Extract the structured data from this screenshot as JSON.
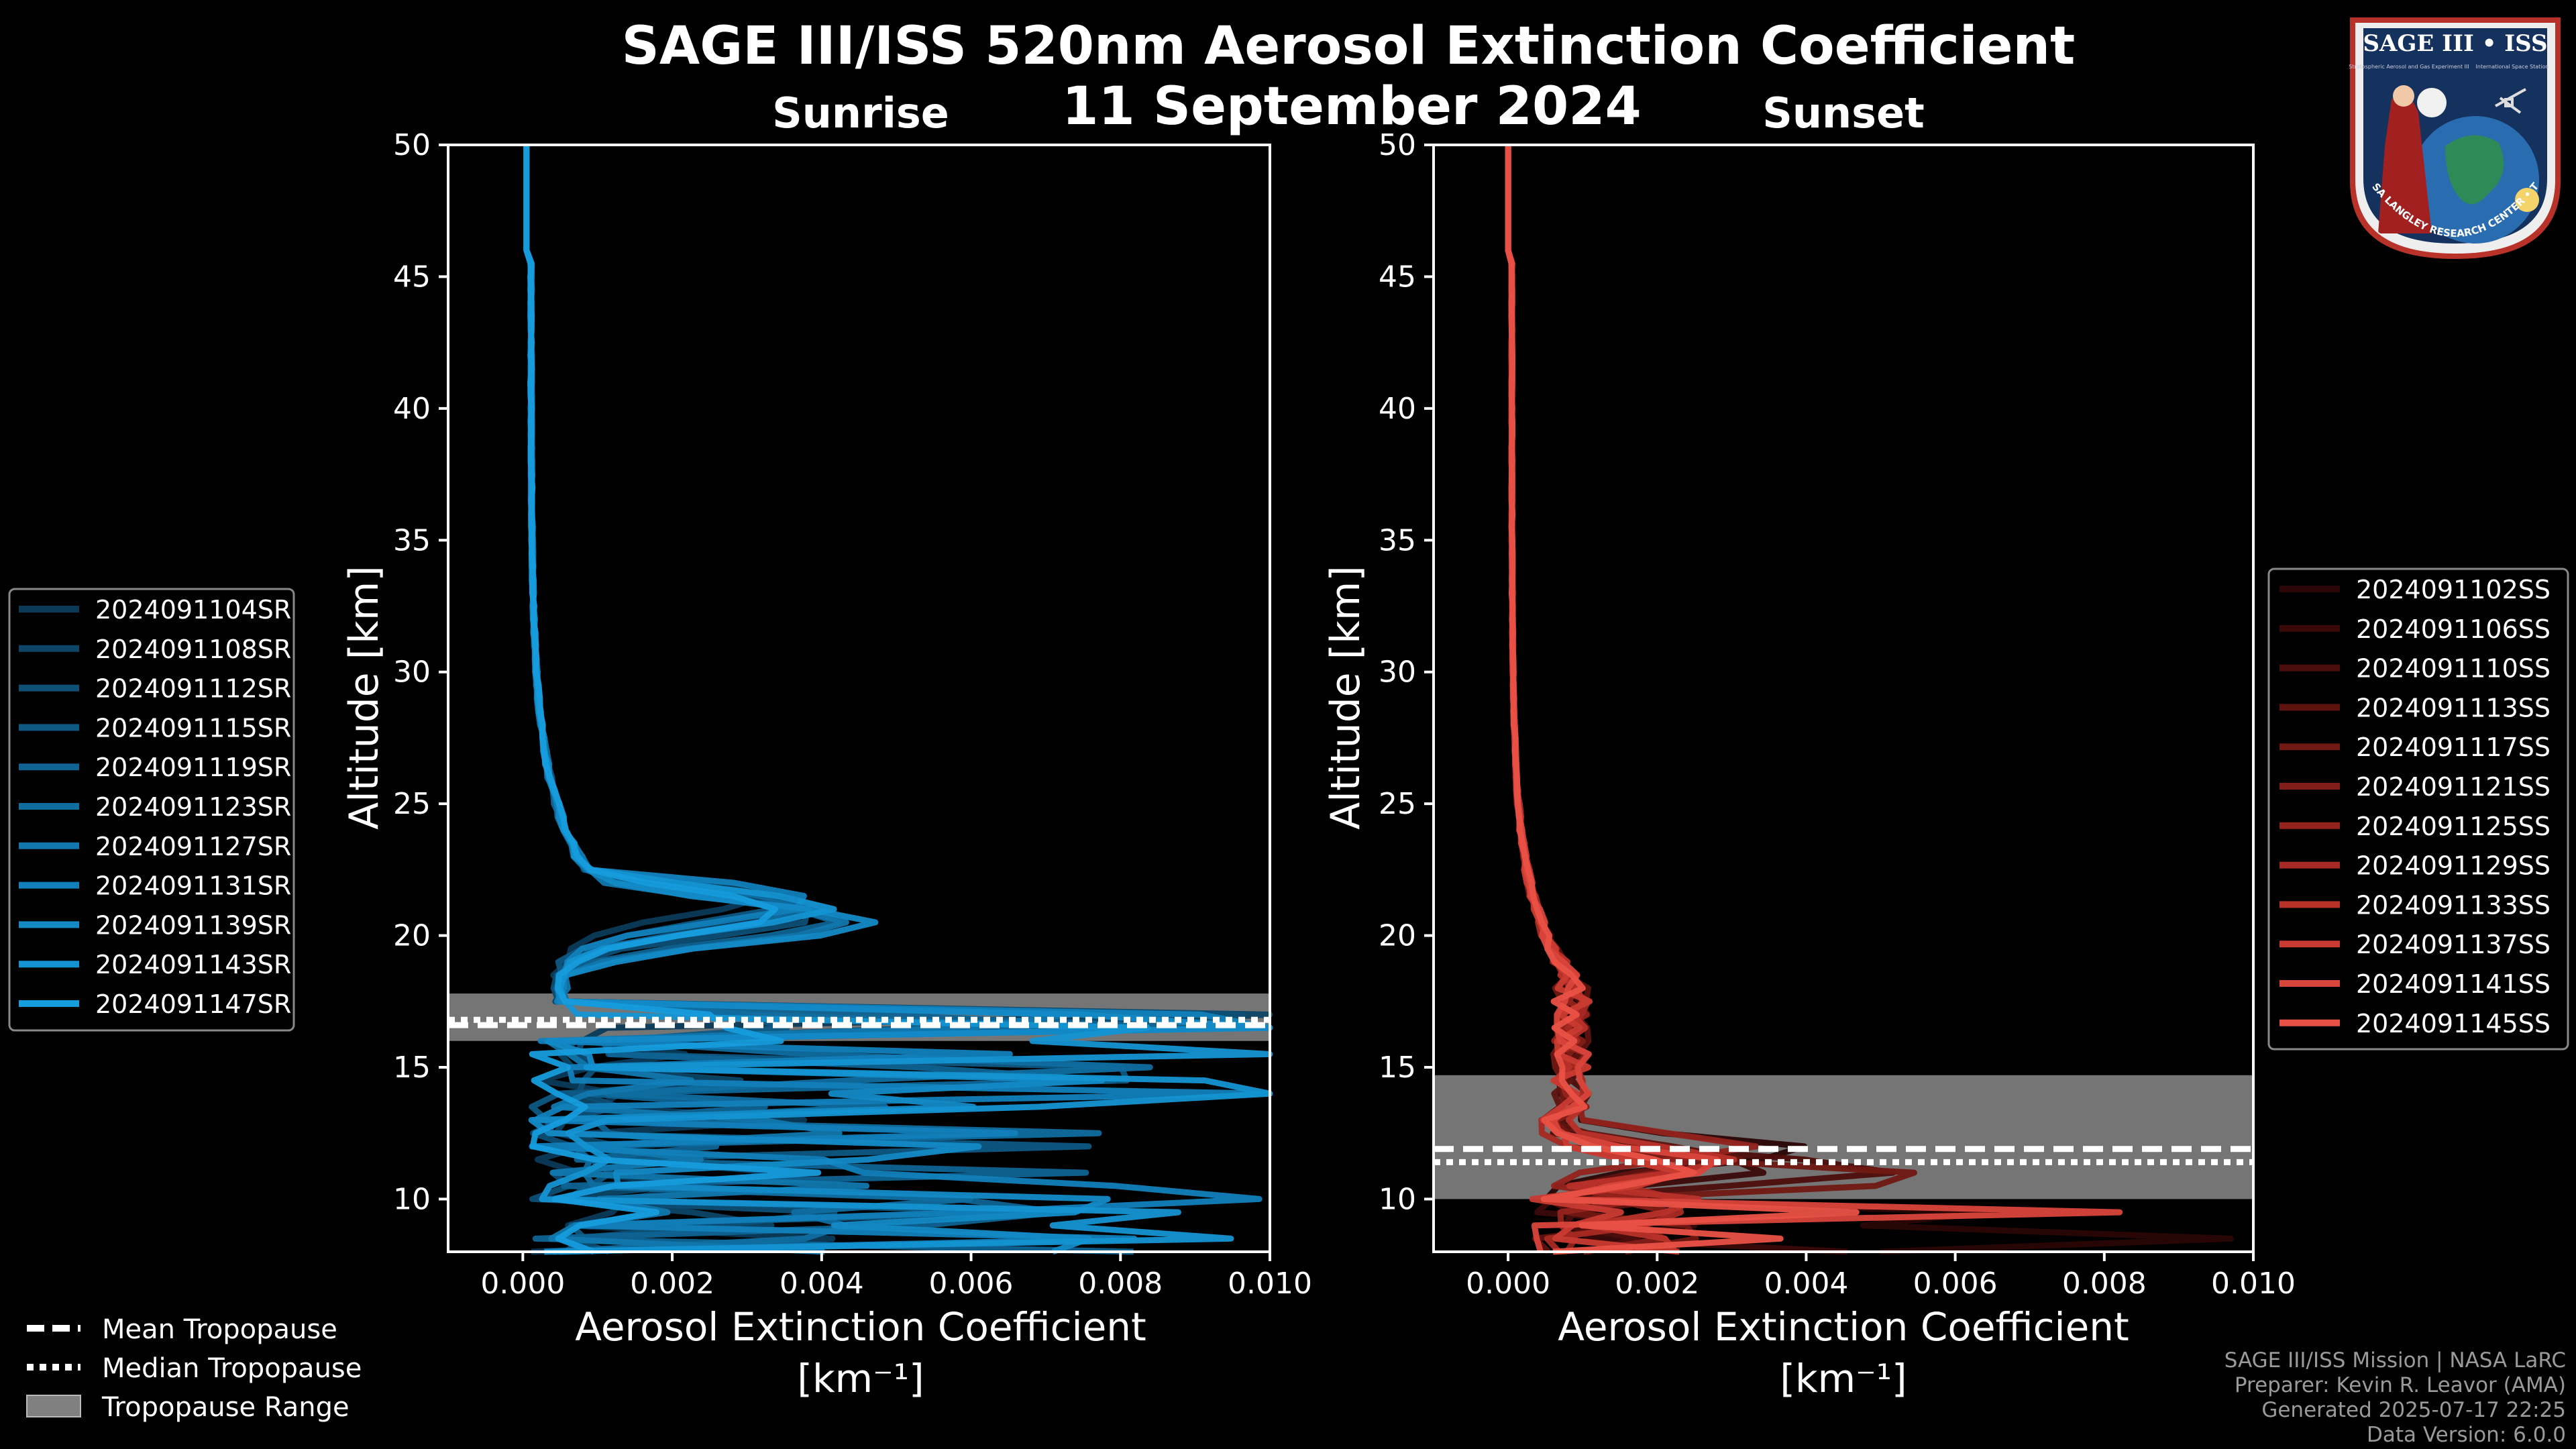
{
  "figure": {
    "title_line1": "SAGE III/ISS 520nm Aerosol Extinction Coefficient",
    "title_line2": "11 September 2024",
    "background": "#000000"
  },
  "footer": {
    "line1": "SAGE III/ISS Mission | NASA LaRC",
    "line2": "Preparer: Kevin R. Leavor (AMA)",
    "line3": "Generated 2025-07-17 22:25",
    "line4": "Data Version: 6.0.0"
  },
  "logo": {
    "title": "SAGE III • ISS",
    "sub_left": "Stratospheric Aerosol and Gas Experiment III",
    "sub_right": "International Space Station",
    "ring": "BALL • NASA LANGLEY RESEARCH CENTER • TAS-I • ESA"
  },
  "tropopause_legend": {
    "mean": "Mean Tropopause",
    "median": "Median Tropopause",
    "range": "Tropopause Range"
  },
  "chart_data": [
    {
      "type": "line",
      "title": "Sunrise",
      "xlabel": "Aerosol Extinction Coefficient",
      "xunit": "[km⁻¹]",
      "ylabel": "Altitude [km]",
      "xlim": [
        -0.001,
        0.01
      ],
      "ylim": [
        8,
        50
      ],
      "xticks": [
        "0.000",
        "0.002",
        "0.004",
        "0.006",
        "0.008",
        "0.010"
      ],
      "yticks": [
        "10",
        "15",
        "20",
        "25",
        "30",
        "35",
        "40",
        "45",
        "50"
      ],
      "legend_position": "left",
      "tropopause": {
        "mean": 16.6,
        "median": 16.8,
        "range": [
          16.0,
          17.8
        ]
      },
      "series": [
        {
          "name": "2024091104SR",
          "color": "#0b3a57",
          "peak": 0.0027,
          "peak_alt": 21.5,
          "low_max": 0.0042,
          "seed": 11
        },
        {
          "name": "2024091108SR",
          "color": "#0c4566",
          "peak": 0.0031,
          "peak_alt": 21.0,
          "low_max": 0.0055,
          "seed": 23
        },
        {
          "name": "2024091112SR",
          "color": "#0d4f75",
          "peak": 0.0035,
          "peak_alt": 20.8,
          "low_max": 0.0068,
          "seed": 37
        },
        {
          "name": "2024091115SR",
          "color": "#0e5984",
          "peak": 0.0029,
          "peak_alt": 21.2,
          "low_max": 0.0105,
          "seed": 41
        },
        {
          "name": "2024091119SR",
          "color": "#0f6392",
          "peak": 0.0037,
          "peak_alt": 20.6,
          "low_max": 0.0085,
          "seed": 53
        },
        {
          "name": "2024091123SR",
          "color": "#106da0",
          "peak": 0.0033,
          "peak_alt": 21.0,
          "low_max": 0.0105,
          "seed": 67
        },
        {
          "name": "2024091127SR",
          "color": "#1177ad",
          "peak": 0.0039,
          "peak_alt": 20.5,
          "low_max": 0.0048,
          "seed": 71
        },
        {
          "name": "2024091131SR",
          "color": "#1280ba",
          "peak": 0.0034,
          "peak_alt": 21.3,
          "low_max": 0.0105,
          "seed": 83
        },
        {
          "name": "2024091139SR",
          "color": "#138ac6",
          "peak": 0.0042,
          "peak_alt": 20.5,
          "low_max": 0.0095,
          "seed": 97
        },
        {
          "name": "2024091143SR",
          "color": "#1493d2",
          "peak": 0.0036,
          "peak_alt": 21.0,
          "low_max": 0.0105,
          "seed": 101
        },
        {
          "name": "2024091147SR",
          "color": "#169cdd",
          "peak": 0.003,
          "peak_alt": 20.9,
          "low_max": 0.0058,
          "seed": 113
        }
      ]
    },
    {
      "type": "line",
      "title": "Sunset",
      "xlabel": "Aerosol Extinction Coefficient",
      "xunit": "[km⁻¹]",
      "ylabel": "Altitude [km]",
      "xlim": [
        -0.001,
        0.01
      ],
      "ylim": [
        8,
        50
      ],
      "xticks": [
        "0.000",
        "0.002",
        "0.004",
        "0.006",
        "0.008",
        "0.010"
      ],
      "yticks": [
        "10",
        "15",
        "20",
        "25",
        "30",
        "35",
        "40",
        "45",
        "50"
      ],
      "legend_position": "right",
      "tropopause": {
        "mean": 11.9,
        "median": 11.4,
        "range": [
          10.0,
          14.7
        ]
      },
      "series": [
        {
          "name": "2024091102SS",
          "color": "#2a0606",
          "peak": 0.0036,
          "peak_alt": 11.8,
          "low_max": 0.0105,
          "seed": 7
        },
        {
          "name": "2024091106SS",
          "color": "#3a0a09",
          "peak": 0.003,
          "peak_alt": 11.2,
          "low_max": 0.005,
          "seed": 19
        },
        {
          "name": "2024091110SS",
          "color": "#4c0e0c",
          "peak": 0.0047,
          "peak_alt": 11.1,
          "low_max": 0.0035,
          "seed": 29
        },
        {
          "name": "2024091113SS",
          "color": "#5e130f",
          "peak": 0.0025,
          "peak_alt": 11.6,
          "low_max": 0.003,
          "seed": 43
        },
        {
          "name": "2024091117SS",
          "color": "#701813",
          "peak": 0.0052,
          "peak_alt": 10.8,
          "low_max": 0.0028,
          "seed": 59
        },
        {
          "name": "2024091121SS",
          "color": "#821d18",
          "peak": 0.0021,
          "peak_alt": 11.4,
          "low_max": 0.0026,
          "seed": 61
        },
        {
          "name": "2024091125SS",
          "color": "#94231d",
          "peak": 0.0028,
          "peak_alt": 12.0,
          "low_max": 0.0032,
          "seed": 73
        },
        {
          "name": "2024091129SS",
          "color": "#a62a23",
          "peak": 0.0019,
          "peak_alt": 11.0,
          "low_max": 0.0025,
          "seed": 79
        },
        {
          "name": "2024091133SS",
          "color": "#b8322a",
          "peak": 0.0024,
          "peak_alt": 11.5,
          "low_max": 0.003,
          "seed": 89
        },
        {
          "name": "2024091137SS",
          "color": "#c93b32",
          "peak": 0.0017,
          "peak_alt": 10.9,
          "low_max": 0.0024,
          "seed": 103
        },
        {
          "name": "2024091141SS",
          "color": "#d9453b",
          "peak": 0.0022,
          "peak_alt": 11.3,
          "low_max": 0.0105,
          "seed": 107
        },
        {
          "name": "2024091145SS",
          "color": "#ea5146",
          "peak": 0.002,
          "peak_alt": 11.1,
          "low_max": 0.005,
          "seed": 127
        }
      ]
    }
  ]
}
